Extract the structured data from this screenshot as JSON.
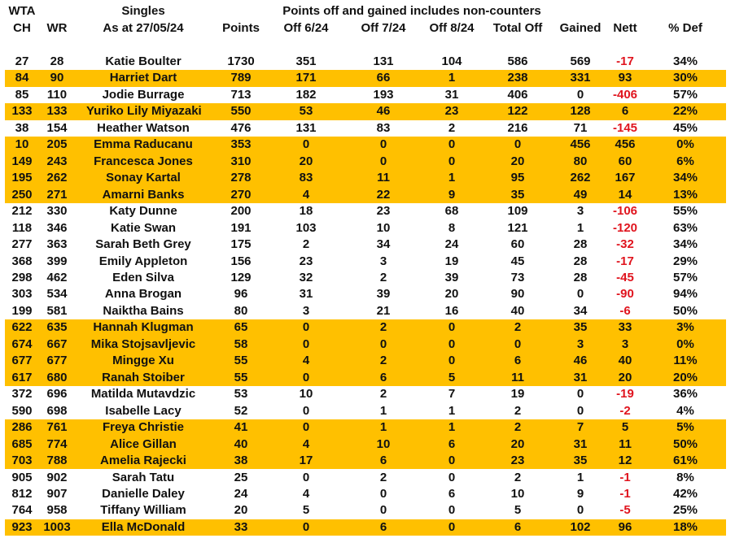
{
  "header": {
    "line1": {
      "ch": "WTA",
      "name": "Singles",
      "note": "Points off and gained includes non-counters"
    },
    "line2": {
      "ch": "CH",
      "wr": "WR",
      "name": "As at 27/05/24",
      "points": "Points",
      "off6": "Off 6/24",
      "off7": "Off 7/24",
      "off8": "Off 8/24",
      "total": "Total Off",
      "gained": "Gained",
      "nett": "Nett",
      "def": "% Def"
    }
  },
  "colors": {
    "highlight": "#FFC000",
    "negative": "#e0141e"
  },
  "rows": [
    {
      "ch": "27",
      "wr": "28",
      "name": "Katie Boulter",
      "points": "1730",
      "off6": "351",
      "off7": "131",
      "off8": "104",
      "total": "586",
      "gained": "569",
      "nett": "-17",
      "def": "34%",
      "highlight": false
    },
    {
      "ch": "84",
      "wr": "90",
      "name": "Harriet Dart",
      "points": "789",
      "off6": "171",
      "off7": "66",
      "off8": "1",
      "total": "238",
      "gained": "331",
      "nett": "93",
      "def": "30%",
      "highlight": true
    },
    {
      "ch": "85",
      "wr": "110",
      "name": "Jodie Burrage",
      "points": "713",
      "off6": "182",
      "off7": "193",
      "off8": "31",
      "total": "406",
      "gained": "0",
      "nett": "-406",
      "def": "57%",
      "highlight": false
    },
    {
      "ch": "133",
      "wr": "133",
      "name": "Yuriko Lily Miyazaki",
      "points": "550",
      "off6": "53",
      "off7": "46",
      "off8": "23",
      "total": "122",
      "gained": "128",
      "nett": "6",
      "def": "22%",
      "highlight": true
    },
    {
      "ch": "38",
      "wr": "154",
      "name": "Heather Watson",
      "points": "476",
      "off6": "131",
      "off7": "83",
      "off8": "2",
      "total": "216",
      "gained": "71",
      "nett": "-145",
      "def": "45%",
      "highlight": false
    },
    {
      "ch": "10",
      "wr": "205",
      "name": "Emma Raducanu",
      "points": "353",
      "off6": "0",
      "off7": "0",
      "off8": "0",
      "total": "0",
      "gained": "456",
      "nett": "456",
      "def": "0%",
      "highlight": true
    },
    {
      "ch": "149",
      "wr": "243",
      "name": "Francesca Jones",
      "points": "310",
      "off6": "20",
      "off7": "0",
      "off8": "0",
      "total": "20",
      "gained": "80",
      "nett": "60",
      "def": "6%",
      "highlight": true
    },
    {
      "ch": "195",
      "wr": "262",
      "name": "Sonay Kartal",
      "points": "278",
      "off6": "83",
      "off7": "11",
      "off8": "1",
      "total": "95",
      "gained": "262",
      "nett": "167",
      "def": "34%",
      "highlight": true
    },
    {
      "ch": "250",
      "wr": "271",
      "name": "Amarni Banks",
      "points": "270",
      "off6": "4",
      "off7": "22",
      "off8": "9",
      "total": "35",
      "gained": "49",
      "nett": "14",
      "def": "13%",
      "highlight": true
    },
    {
      "ch": "212",
      "wr": "330",
      "name": "Katy Dunne",
      "points": "200",
      "off6": "18",
      "off7": "23",
      "off8": "68",
      "total": "109",
      "gained": "3",
      "nett": "-106",
      "def": "55%",
      "highlight": false
    },
    {
      "ch": "118",
      "wr": "346",
      "name": "Katie Swan",
      "points": "191",
      "off6": "103",
      "off7": "10",
      "off8": "8",
      "total": "121",
      "gained": "1",
      "nett": "-120",
      "def": "63%",
      "highlight": false
    },
    {
      "ch": "277",
      "wr": "363",
      "name": "Sarah Beth Grey",
      "points": "175",
      "off6": "2",
      "off7": "34",
      "off8": "24",
      "total": "60",
      "gained": "28",
      "nett": "-32",
      "def": "34%",
      "highlight": false
    },
    {
      "ch": "368",
      "wr": "399",
      "name": "Emily Appleton",
      "points": "156",
      "off6": "23",
      "off7": "3",
      "off8": "19",
      "total": "45",
      "gained": "28",
      "nett": "-17",
      "def": "29%",
      "highlight": false
    },
    {
      "ch": "298",
      "wr": "462",
      "name": "Eden Silva",
      "points": "129",
      "off6": "32",
      "off7": "2",
      "off8": "39",
      "total": "73",
      "gained": "28",
      "nett": "-45",
      "def": "57%",
      "highlight": false
    },
    {
      "ch": "303",
      "wr": "534",
      "name": "Anna Brogan",
      "points": "96",
      "off6": "31",
      "off7": "39",
      "off8": "20",
      "total": "90",
      "gained": "0",
      "nett": "-90",
      "def": "94%",
      "highlight": false
    },
    {
      "ch": "199",
      "wr": "581",
      "name": "Naiktha Bains",
      "points": "80",
      "off6": "3",
      "off7": "21",
      "off8": "16",
      "total": "40",
      "gained": "34",
      "nett": "-6",
      "def": "50%",
      "highlight": false
    },
    {
      "ch": "622",
      "wr": "635",
      "name": "Hannah Klugman",
      "points": "65",
      "off6": "0",
      "off7": "2",
      "off8": "0",
      "total": "2",
      "gained": "35",
      "nett": "33",
      "def": "3%",
      "highlight": true
    },
    {
      "ch": "674",
      "wr": "667",
      "name": "Mika Stojsavljevic",
      "points": "58",
      "off6": "0",
      "off7": "0",
      "off8": "0",
      "total": "0",
      "gained": "3",
      "nett": "3",
      "def": "0%",
      "highlight": true
    },
    {
      "ch": "677",
      "wr": "677",
      "name": "Mingge Xu",
      "points": "55",
      "off6": "4",
      "off7": "2",
      "off8": "0",
      "total": "6",
      "gained": "46",
      "nett": "40",
      "def": "11%",
      "highlight": true
    },
    {
      "ch": "617",
      "wr": "680",
      "name": "Ranah Stoiber",
      "points": "55",
      "off6": "0",
      "off7": "6",
      "off8": "5",
      "total": "11",
      "gained": "31",
      "nett": "20",
      "def": "20%",
      "highlight": true
    },
    {
      "ch": "372",
      "wr": "696",
      "name": "Matilda Mutavdzic",
      "points": "53",
      "off6": "10",
      "off7": "2",
      "off8": "7",
      "total": "19",
      "gained": "0",
      "nett": "-19",
      "def": "36%",
      "highlight": false
    },
    {
      "ch": "590",
      "wr": "698",
      "name": "Isabelle Lacy",
      "points": "52",
      "off6": "0",
      "off7": "1",
      "off8": "1",
      "total": "2",
      "gained": "0",
      "nett": "-2",
      "def": "4%",
      "highlight": false
    },
    {
      "ch": "286",
      "wr": "761",
      "name": "Freya Christie",
      "points": "41",
      "off6": "0",
      "off7": "1",
      "off8": "1",
      "total": "2",
      "gained": "7",
      "nett": "5",
      "def": "5%",
      "highlight": true
    },
    {
      "ch": "685",
      "wr": "774",
      "name": "Alice Gillan",
      "points": "40",
      "off6": "4",
      "off7": "10",
      "off8": "6",
      "total": "20",
      "gained": "31",
      "nett": "11",
      "def": "50%",
      "highlight": true
    },
    {
      "ch": "703",
      "wr": "788",
      "name": "Amelia Rajecki",
      "points": "38",
      "off6": "17",
      "off7": "6",
      "off8": "0",
      "total": "23",
      "gained": "35",
      "nett": "12",
      "def": "61%",
      "highlight": true
    },
    {
      "ch": "905",
      "wr": "902",
      "name": "Sarah Tatu",
      "points": "25",
      "off6": "0",
      "off7": "2",
      "off8": "0",
      "total": "2",
      "gained": "1",
      "nett": "-1",
      "def": "8%",
      "highlight": false
    },
    {
      "ch": "812",
      "wr": "907",
      "name": "Danielle Daley",
      "points": "24",
      "off6": "4",
      "off7": "0",
      "off8": "6",
      "total": "10",
      "gained": "9",
      "nett": "-1",
      "def": "42%",
      "highlight": false
    },
    {
      "ch": "764",
      "wr": "958",
      "name": "Tiffany William",
      "points": "20",
      "off6": "5",
      "off7": "0",
      "off8": "0",
      "total": "5",
      "gained": "0",
      "nett": "-5",
      "def": "25%",
      "highlight": false
    },
    {
      "ch": "923",
      "wr": "1003",
      "name": "Ella McDonald",
      "points": "33",
      "off6": "0",
      "off7": "6",
      "off8": "0",
      "total": "6",
      "gained": "102",
      "nett": "96",
      "def": "18%",
      "highlight": true
    }
  ]
}
